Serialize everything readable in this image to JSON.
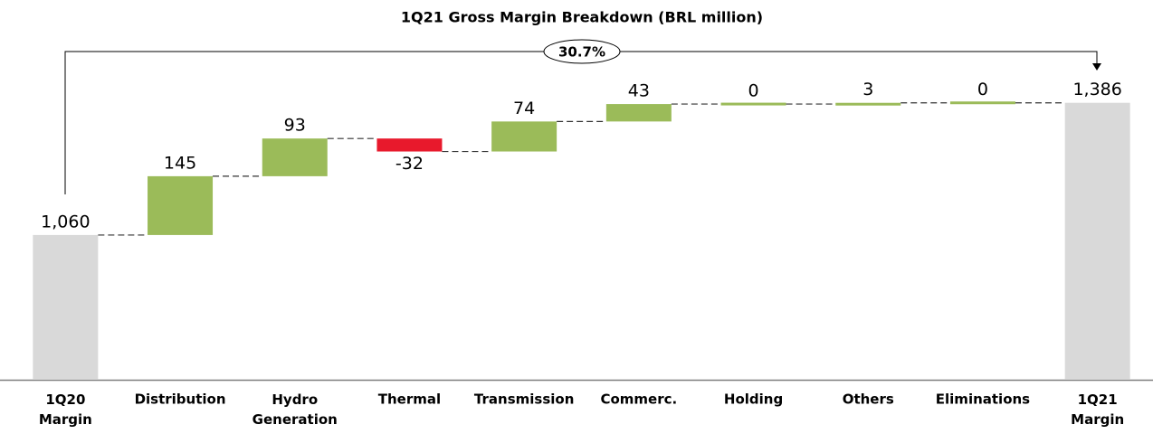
{
  "chart_data": {
    "type": "waterfall",
    "title": "1Q21 Gross Margin Breakdown (BRL million)",
    "categories": [
      "1Q20 Margin",
      "Distribution",
      "Hydro Generation",
      "Thermal",
      "Transmission",
      "Commerc.",
      "Holding",
      "Others",
      "Eliminations",
      "1Q21 Margin"
    ],
    "measure": [
      "total",
      "relative",
      "relative",
      "relative",
      "relative",
      "relative",
      "relative",
      "relative",
      "relative",
      "total"
    ],
    "values": [
      1060,
      145,
      93,
      -32,
      74,
      43,
      0,
      3,
      0,
      1386
    ],
    "value_labels": [
      "1,060",
      "145",
      "93",
      "-32",
      "74",
      "43",
      "0",
      "3",
      "0",
      "1,386"
    ],
    "colors": {
      "total": "#d9d9d9",
      "increase": "#9bbb59",
      "decrease": "#e8192c"
    },
    "ylim": [
      703,
      1430
    ],
    "annotation": "30.7%"
  }
}
